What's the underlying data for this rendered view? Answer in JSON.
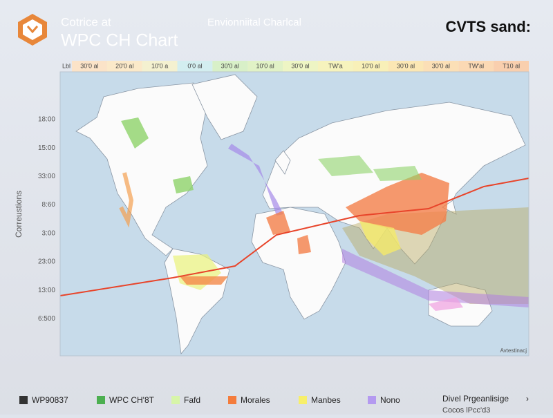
{
  "header": {
    "subtitle": "Cotrice at",
    "title": "WPC CH Chart",
    "center_title": "Envionniital Charlcal",
    "brand": "CVTS sand:"
  },
  "scale": {
    "first": "Lbl",
    "cells": [
      {
        "label": "30'0 al",
        "color": "#fbe3c8"
      },
      {
        "label": "20'0 al",
        "color": "#fbe9c9"
      },
      {
        "label": "10'0 a",
        "color": "#f4f1d0"
      },
      {
        "label": "0'0 al",
        "color": "#d3eef0"
      },
      {
        "label": "30'0 al",
        "color": "#d8f0c8"
      },
      {
        "label": "10'0 al",
        "color": "#e1f2c6"
      },
      {
        "label": "30'0 al",
        "color": "#eef5c4"
      },
      {
        "label": "TW'a",
        "color": "#f6f3bd"
      },
      {
        "label": "10'0 al",
        "color": "#f8f0b8"
      },
      {
        "label": "30'0 al",
        "color": "#fbe7b4"
      },
      {
        "label": "30'0 al",
        "color": "#fbdfb6"
      },
      {
        "label": "TW'al",
        "color": "#fbd9b4"
      },
      {
        "label": "T10 al",
        "color": "#f9cfae"
      }
    ]
  },
  "y_axis": {
    "title": "Correustions",
    "labels": [
      "18:00",
      "15:00",
      "33:00",
      "8:60",
      "3:00",
      "23:00",
      "13:00",
      "6:500"
    ]
  },
  "map": {
    "credit": "Avtestinacj"
  },
  "legend": [
    {
      "label": "WP90837",
      "color": "#333333"
    },
    {
      "label": "WPC CH'8T",
      "color": "#4caf50"
    },
    {
      "label": "Fafd",
      "color": "#d7f5a8"
    },
    {
      "label": "Morales",
      "color": "#f47c3c"
    },
    {
      "label": "Manbes",
      "color": "#f7ef6a"
    },
    {
      "label": "Nono",
      "color": "#b49af0"
    }
  ],
  "footer": {
    "link": "Divel Prgeanlisige",
    "sub": "Cocos lPcc'd3"
  }
}
